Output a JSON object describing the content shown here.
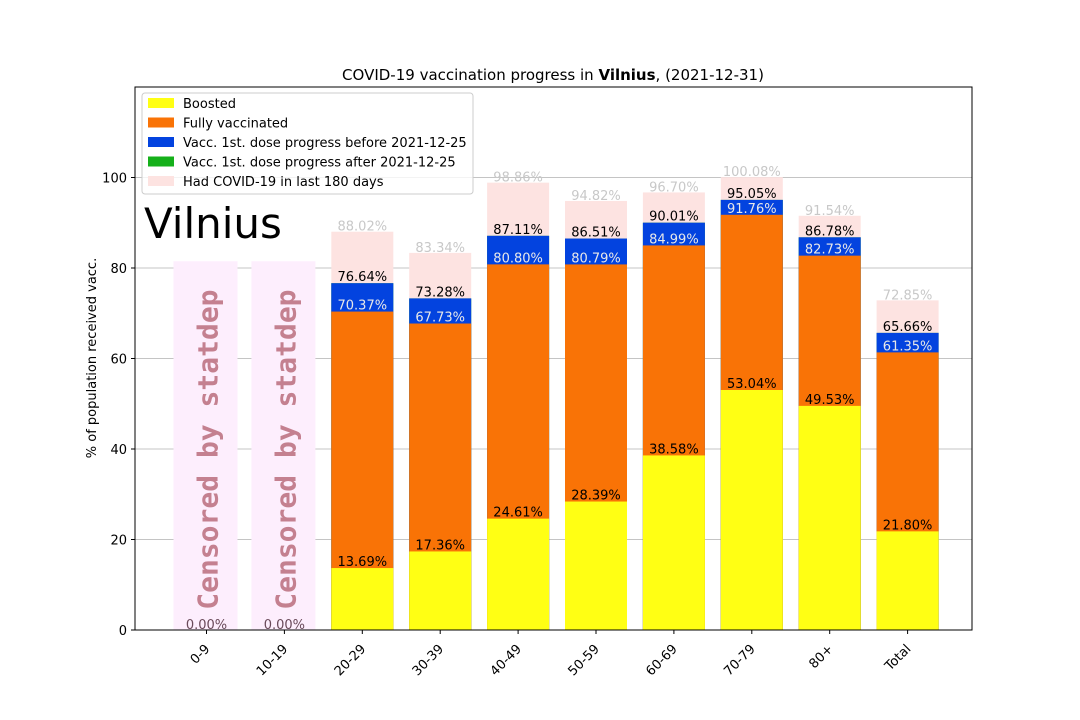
{
  "chart_data": {
    "type": "bar",
    "title_prefix": "COVID-19 vaccination progress in ",
    "title_bold": "Vilnius",
    "title_suffix": ", (2021-12-31)",
    "watermark_text": "Vilnius",
    "ylabel": "% of population received vacc.",
    "ylim": [
      0,
      120
    ],
    "yticks": [
      "0",
      "20",
      "40",
      "60",
      "80",
      "100"
    ],
    "grid": true,
    "legend_position": "top-left",
    "colors": {
      "boosted": "#ffff14",
      "fully": "#f97306",
      "before": "#0343df",
      "after": "#15b01a",
      "covid": "#fde3e1",
      "censored_fill": "#fdeefd",
      "censored_text": "#c48090",
      "light_label": "#c8c8c8"
    },
    "legend": [
      {
        "label": "Boosted",
        "color": "#ffff14"
      },
      {
        "label": "Fully vaccinated",
        "color": "#f97306"
      },
      {
        "label": "Vacc. 1st. dose progress before 2021-12-25",
        "color": "#0343df"
      },
      {
        "label": "Vacc. 1st. dose progress after 2021-12-25",
        "color": "#15b01a"
      },
      {
        "label": "Had COVID-19 in last 180 days",
        "color": "#fde3e1"
      }
    ],
    "categories": [
      "0-9",
      "10-19",
      "20-29",
      "30-39",
      "40-49",
      "50-59",
      "60-69",
      "70-79",
      "80+",
      "Total"
    ],
    "censored": [
      true,
      true,
      false,
      false,
      false,
      false,
      false,
      false,
      false,
      false
    ],
    "censored_text": "Censored  by  statdep",
    "censored_height": 81.5,
    "series": [
      {
        "name": "Boosted",
        "values": [
          0,
          0,
          13.69,
          17.36,
          24.61,
          28.39,
          38.58,
          53.04,
          49.53,
          21.8
        ]
      },
      {
        "name": "Fully vaccinated",
        "values": [
          0,
          0,
          70.37,
          67.73,
          80.8,
          80.79,
          84.99,
          91.76,
          82.73,
          61.35
        ]
      },
      {
        "name": "Vacc. 1st. dose progress before 2021-12-25",
        "values": [
          0,
          0,
          76.64,
          73.28,
          87.11,
          86.51,
          90.01,
          95.05,
          86.78,
          65.66
        ]
      },
      {
        "name": "Vacc. 1st. dose progress after 2021-12-25",
        "values": [
          0,
          0,
          76.64,
          73.28,
          87.11,
          86.51,
          90.01,
          95.05,
          86.78,
          65.66
        ]
      },
      {
        "name": "Had COVID-19 in last 180 days",
        "values": [
          0,
          0,
          88.02,
          83.34,
          98.86,
          94.82,
          96.7,
          100.08,
          91.54,
          72.85
        ]
      }
    ],
    "labels": {
      "boosted": [
        "0.00%",
        "0.00%",
        "13.69%",
        "17.36%",
        "24.61%",
        "28.39%",
        "38.58%",
        "53.04%",
        "49.53%",
        "21.80%"
      ],
      "fully": [
        "",
        "",
        "70.37%",
        "67.73%",
        "80.80%",
        "80.79%",
        "84.99%",
        "91.76%",
        "82.73%",
        "61.35%"
      ],
      "first_dose": [
        "",
        "",
        "76.64%",
        "73.28%",
        "87.11%",
        "86.51%",
        "90.01%",
        "95.05%",
        "86.78%",
        "65.66%"
      ],
      "covid": [
        "",
        "",
        "88.02%",
        "83.34%",
        "98.86%",
        "94.82%",
        "96.70%",
        "100.08%",
        "91.54%",
        "72.85%"
      ]
    }
  }
}
